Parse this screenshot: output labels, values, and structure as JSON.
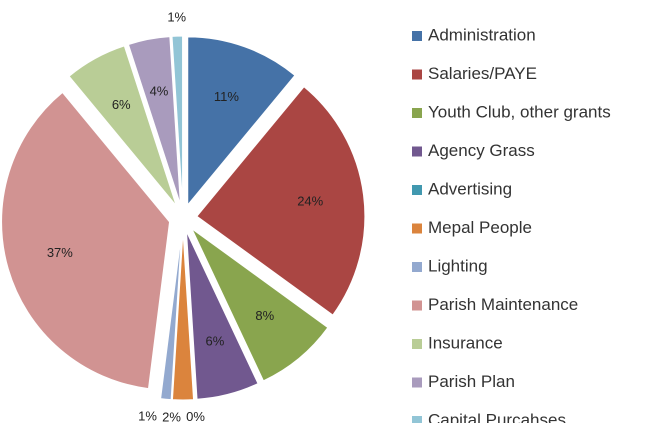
{
  "chart_data": {
    "type": "pie",
    "categories": [
      "Administration",
      "Salaries/PAYE",
      "Youth Club, other grants",
      "Agency Grass",
      "Advertising",
      "Mepal People",
      "Lighting",
      "Parish Maintenance",
      "Insurance",
      "Parish Plan",
      "Capital Purcahses"
    ],
    "values": [
      11,
      24,
      8,
      6,
      0,
      2,
      1,
      37,
      6,
      4,
      1
    ],
    "value_labels": [
      "11%",
      "24%",
      "8%",
      "6%",
      "0%",
      "2%",
      "1%",
      "37%",
      "6%",
      "4%",
      "1%"
    ],
    "colors": [
      "#4572a7",
      "#aa4643",
      "#89a54e",
      "#71588f",
      "#4198af",
      "#db843d",
      "#93a9cf",
      "#d19392",
      "#b9cd96",
      "#a99bbd",
      "#92c5d6"
    ],
    "legend": "right"
  }
}
